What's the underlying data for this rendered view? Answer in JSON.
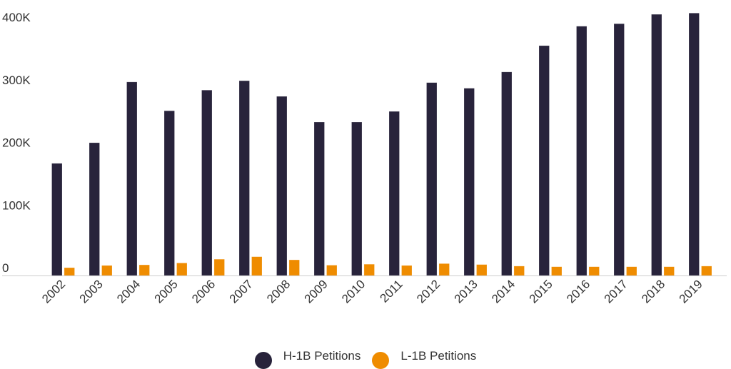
{
  "colors": {
    "h1b": "#28233b",
    "l1b": "#ef8c00",
    "axis": "#cccccc",
    "text": "#333333"
  },
  "legend": {
    "items": [
      {
        "label": "H-1B Petitions",
        "color": "#28233b"
      },
      {
        "label": "L-1B Petitions",
        "color": "#ef8c00"
      }
    ]
  },
  "chart_data": {
    "type": "bar",
    "title": "",
    "xlabel": "",
    "ylabel": "",
    "categories": [
      "2002",
      "2003",
      "2004",
      "2005",
      "2006",
      "2007",
      "2008",
      "2009",
      "2010",
      "2011",
      "2012",
      "2013",
      "2014",
      "2015",
      "2016",
      "2017",
      "2018",
      "2019"
    ],
    "series": [
      {
        "name": "H-1B Petitions",
        "color": "#28233b",
        "values": [
          179000,
          212000,
          309000,
          263000,
          296000,
          311000,
          286000,
          245000,
          245000,
          262000,
          308000,
          299000,
          325000,
          367000,
          398000,
          402000,
          417000,
          419000
        ]
      },
      {
        "name": "L-1B Petitions",
        "color": "#ef8c00",
        "values": [
          12500,
          16000,
          17000,
          20000,
          26000,
          30000,
          25000,
          16500,
          18000,
          16000,
          19000,
          17500,
          15000,
          14000,
          14000,
          14000,
          14000,
          15000
        ]
      }
    ],
    "yticks": [
      0,
      100000,
      200000,
      300000,
      400000
    ],
    "ytick_labels": [
      "0",
      "100K",
      "200K",
      "300K",
      "400K"
    ],
    "ylim": [
      0,
      400000
    ],
    "grid": false,
    "legend_position": "bottom"
  }
}
